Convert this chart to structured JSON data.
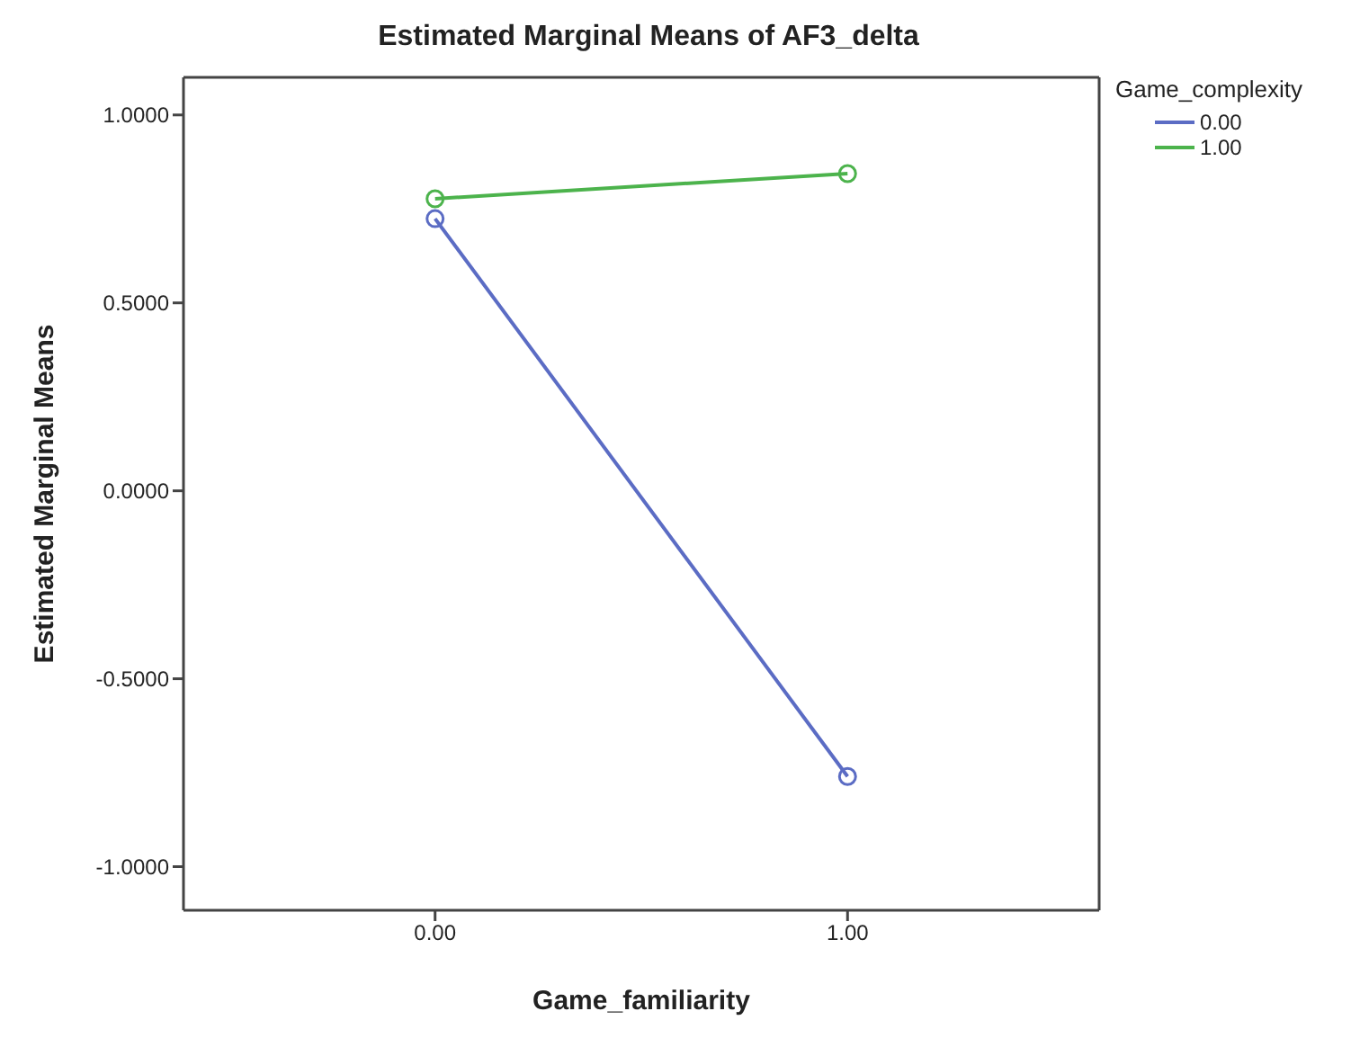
{
  "chart_data": {
    "type": "line",
    "title": "Estimated Marginal Means of AF3_delta",
    "xlabel": "Game_familiarity",
    "ylabel": "Estimated Marginal Means",
    "legend_title": "Game_complexity",
    "x": [
      0,
      1
    ],
    "series": [
      {
        "name": "0.00",
        "color": "#5b6cc4",
        "values": [
          0.724,
          -0.76
        ]
      },
      {
        "name": "1.00",
        "color": "#4cb34c",
        "values": [
          0.777,
          0.844
        ]
      }
    ],
    "xlim": [
      -0.61,
      1.61
    ],
    "xticks": [
      {
        "value": 0,
        "label": "0.00"
      },
      {
        "value": 1,
        "label": "1.00"
      }
    ],
    "ylim": [
      -1.116,
      1.1
    ],
    "yticks": [
      {
        "value": -1,
        "label": "-1.0000"
      },
      {
        "value": -0.5,
        "label": "-0.5000"
      },
      {
        "value": 0,
        "label": "0.0000"
      },
      {
        "value": 0.5,
        "label": "0.5000"
      },
      {
        "value": 1,
        "label": "1.0000"
      }
    ],
    "grid": false,
    "legend": "top right",
    "marker": "circle",
    "line_style": "solid"
  }
}
